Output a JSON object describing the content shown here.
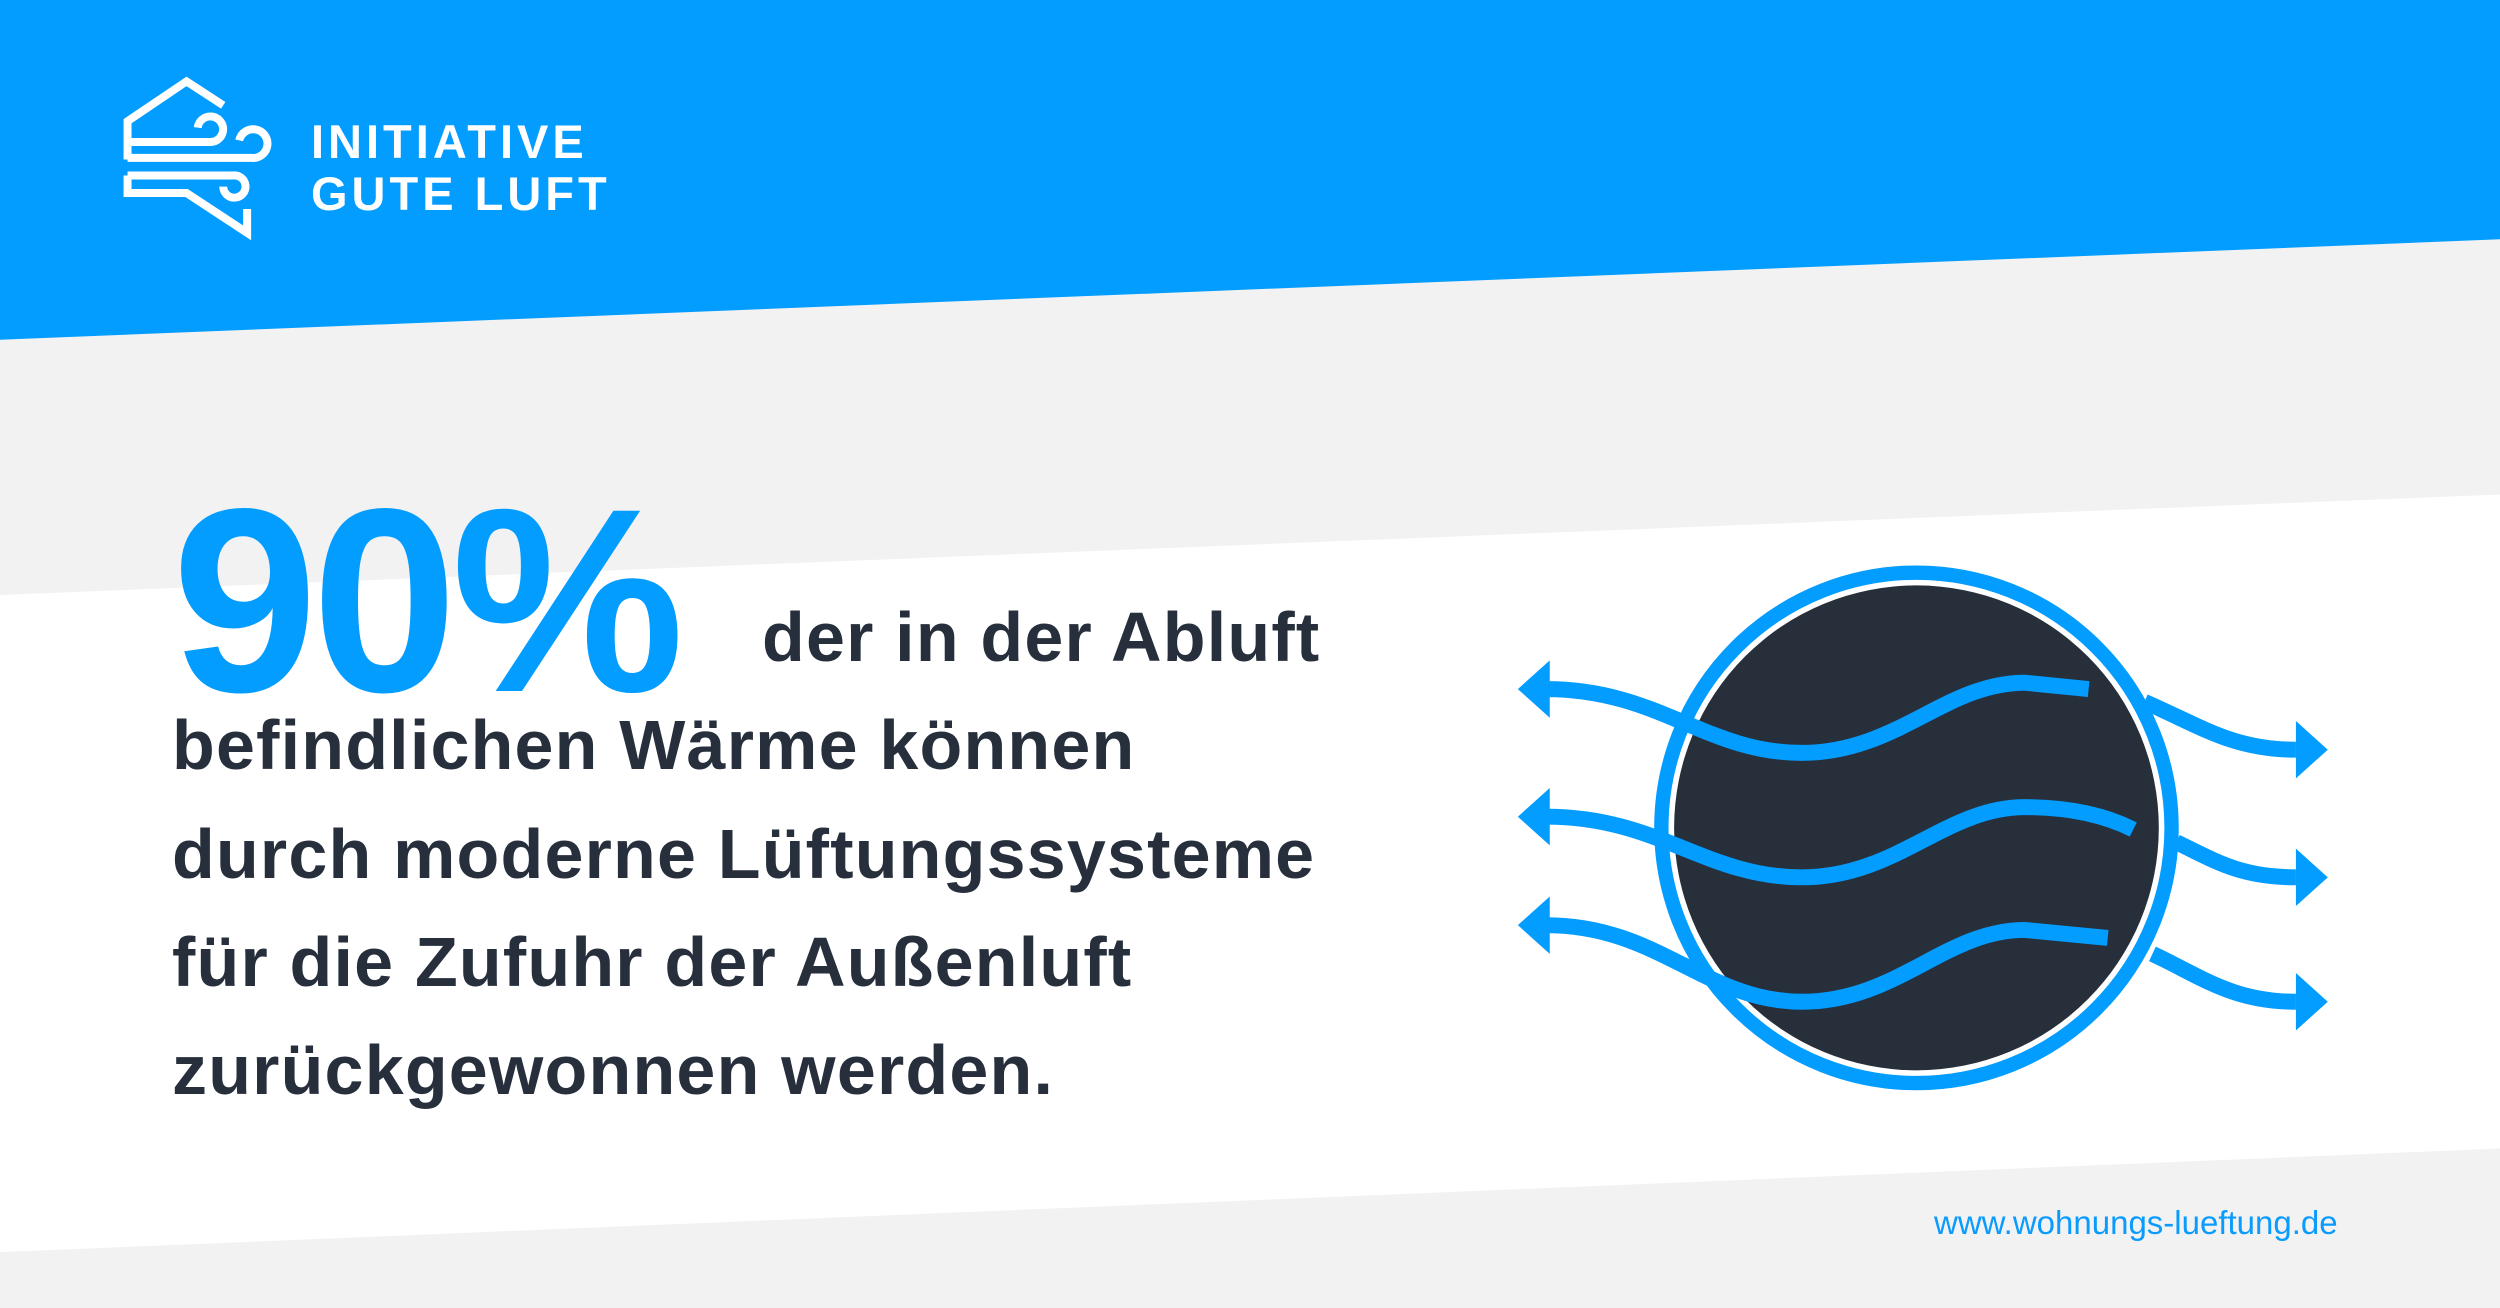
{
  "brand": {
    "line1": "INITIATIVE",
    "line2": "GUTE LUFT"
  },
  "headline": {
    "percent": "90%",
    "lines": [
      "der in der Abluft",
      "befindlichen Wärme können",
      "durch moderne Lüftungssysteme",
      "für die Zufuhr der Außenluft",
      "zurückgewonnen werden."
    ]
  },
  "footer": {
    "url": "www.wohnungs-lueftung.de"
  },
  "colors": {
    "brand_blue": "#039cff",
    "dark": "#272f3a",
    "background": "#f2f2f2",
    "text": "#262f3b"
  },
  "icons": {
    "logo": "house-wind-icon",
    "graphic": "heat-exchanger-airflow-icon"
  }
}
